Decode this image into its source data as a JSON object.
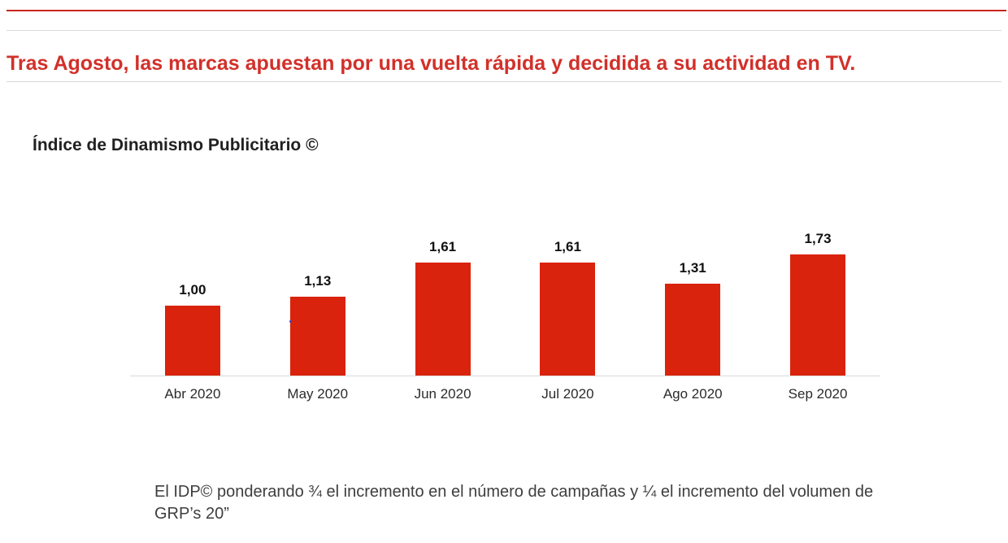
{
  "colors": {
    "brand_red_line": "#c9251d",
    "headline_red": "#d2302a",
    "bar_red": "#da230c",
    "divider_gray": "#d8d8d8",
    "axis_gray": "#d9d9d9"
  },
  "header": {
    "headline": "Tras Agosto, las marcas apuestan por una vuelta rápida y decidida a su actividad en TV."
  },
  "chart_data": {
    "type": "bar",
    "title": "Índice de Dinamismo Publicitario ©",
    "categories": [
      "Abr 2020",
      "May 2020",
      "Jun 2020",
      "Jul 2020",
      "Ago 2020",
      "Sep 2020"
    ],
    "values": [
      1.0,
      1.13,
      1.61,
      1.61,
      1.31,
      1.73
    ],
    "value_labels": [
      "1,00",
      "1,13",
      "1,61",
      "1,61",
      "1,31",
      "1,73"
    ],
    "bar_color": "#da230c",
    "xlabel": "",
    "ylabel": "",
    "ylim": [
      0,
      1.8
    ],
    "grid": false,
    "legend": false,
    "value_label_position": "above-bars",
    "baseline_axis": "x-axis only, light gray"
  },
  "footnote": {
    "text": "El IDP© ponderando ¾ el incremento en el número de campañas y ¼ el incremento del volumen de GRP’s 20”"
  }
}
